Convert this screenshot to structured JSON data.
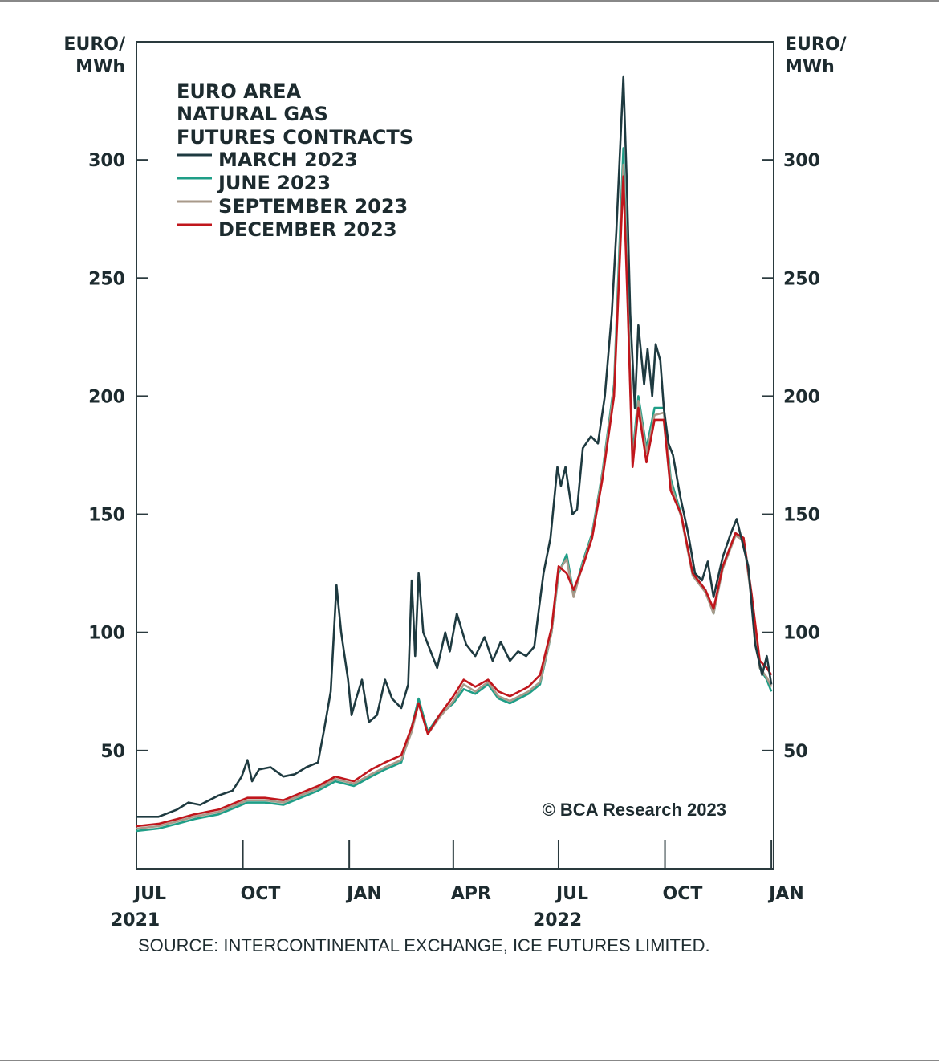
{
  "chart_data": {
    "type": "line",
    "title_lines": [
      "EURO AREA",
      "NATURAL GAS",
      "FUTURES CONTRACTS"
    ],
    "y_unit_left": [
      "EURO/",
      "MWh"
    ],
    "y_unit_right": [
      "EURO/",
      "MWh"
    ],
    "ylim": [
      0,
      350
    ],
    "y_ticks": [
      50,
      100,
      150,
      200,
      250,
      300
    ],
    "y_tick_labels": [
      "50",
      "100",
      "150",
      "200",
      "250",
      "300"
    ],
    "x_range": [
      "2021-07-01",
      "2023-01-03"
    ],
    "x_ticks": [
      "2021-07-01",
      "2021-10-01",
      "2022-01-01",
      "2022-04-01",
      "2022-07-01",
      "2022-10-01",
      "2023-01-01"
    ],
    "x_tick_labels": [
      "JUL",
      "OCT",
      "JAN",
      "APR",
      "JUL",
      "OCT",
      "JAN"
    ],
    "year_labels": [
      {
        "text": "2021",
        "at": "2021-07-01"
      },
      {
        "text": "2022",
        "at": "2022-07-01"
      }
    ],
    "grid": false,
    "legend_position": "top-left",
    "annotation": "© BCA Research 2023",
    "source": "SOURCE: INTERCONTINENTAL EXCHANGE, ICE FUTURES LIMITED.",
    "series": [
      {
        "name": "MARCH 2023",
        "color": "#1e3a40",
        "points": [
          [
            "2021-07-01",
            22
          ],
          [
            "2021-07-20",
            22
          ],
          [
            "2021-08-05",
            25
          ],
          [
            "2021-08-15",
            28
          ],
          [
            "2021-08-25",
            27
          ],
          [
            "2021-09-10",
            31
          ],
          [
            "2021-09-22",
            33
          ],
          [
            "2021-09-30",
            39
          ],
          [
            "2021-10-05",
            46
          ],
          [
            "2021-10-09",
            37
          ],
          [
            "2021-10-15",
            42
          ],
          [
            "2021-10-25",
            43
          ],
          [
            "2021-11-05",
            39
          ],
          [
            "2021-11-15",
            40
          ],
          [
            "2021-11-25",
            43
          ],
          [
            "2021-12-05",
            45
          ],
          [
            "2021-12-10",
            58
          ],
          [
            "2021-12-16",
            75
          ],
          [
            "2021-12-21",
            120
          ],
          [
            "2021-12-25",
            100
          ],
          [
            "2021-12-31",
            80
          ],
          [
            "2022-01-03",
            65
          ],
          [
            "2022-01-07",
            72
          ],
          [
            "2022-01-12",
            80
          ],
          [
            "2022-01-18",
            62
          ],
          [
            "2022-01-25",
            65
          ],
          [
            "2022-02-01",
            80
          ],
          [
            "2022-02-07",
            72
          ],
          [
            "2022-02-15",
            68
          ],
          [
            "2022-02-21",
            78
          ],
          [
            "2022-02-24",
            122
          ],
          [
            "2022-02-27",
            90
          ],
          [
            "2022-03-02",
            125
          ],
          [
            "2022-03-06",
            100
          ],
          [
            "2022-03-10",
            95
          ],
          [
            "2022-03-18",
            85
          ],
          [
            "2022-03-25",
            100
          ],
          [
            "2022-03-29",
            92
          ],
          [
            "2022-04-04",
            108
          ],
          [
            "2022-04-12",
            95
          ],
          [
            "2022-04-20",
            90
          ],
          [
            "2022-04-28",
            98
          ],
          [
            "2022-05-05",
            88
          ],
          [
            "2022-05-12",
            96
          ],
          [
            "2022-05-20",
            88
          ],
          [
            "2022-05-27",
            92
          ],
          [
            "2022-06-03",
            90
          ],
          [
            "2022-06-10",
            94
          ],
          [
            "2022-06-14",
            110
          ],
          [
            "2022-06-18",
            125
          ],
          [
            "2022-06-24",
            140
          ],
          [
            "2022-06-30",
            170
          ],
          [
            "2022-07-03",
            162
          ],
          [
            "2022-07-07",
            170
          ],
          [
            "2022-07-13",
            150
          ],
          [
            "2022-07-17",
            152
          ],
          [
            "2022-07-22",
            178
          ],
          [
            "2022-07-29",
            183
          ],
          [
            "2022-08-04",
            180
          ],
          [
            "2022-08-10",
            200
          ],
          [
            "2022-08-16",
            235
          ],
          [
            "2022-08-20",
            270
          ],
          [
            "2022-08-26",
            335
          ],
          [
            "2022-08-29",
            290
          ],
          [
            "2022-09-01",
            235
          ],
          [
            "2022-09-05",
            195
          ],
          [
            "2022-09-08",
            230
          ],
          [
            "2022-09-13",
            205
          ],
          [
            "2022-09-16",
            220
          ],
          [
            "2022-09-20",
            200
          ],
          [
            "2022-09-23",
            222
          ],
          [
            "2022-09-27",
            215
          ],
          [
            "2022-09-30",
            195
          ],
          [
            "2022-10-04",
            180
          ],
          [
            "2022-10-08",
            175
          ],
          [
            "2022-10-14",
            158
          ],
          [
            "2022-10-21",
            142
          ],
          [
            "2022-10-27",
            125
          ],
          [
            "2022-11-02",
            122
          ],
          [
            "2022-11-07",
            130
          ],
          [
            "2022-11-12",
            115
          ],
          [
            "2022-11-20",
            132
          ],
          [
            "2022-11-27",
            142
          ],
          [
            "2022-12-02",
            148
          ],
          [
            "2022-12-07",
            138
          ],
          [
            "2022-12-12",
            128
          ],
          [
            "2022-12-18",
            95
          ],
          [
            "2022-12-24",
            82
          ],
          [
            "2022-12-28",
            90
          ],
          [
            "2023-01-01",
            78
          ]
        ]
      },
      {
        "name": "JUNE 2023",
        "color": "#1f9e87",
        "points": [
          [
            "2021-07-01",
            16
          ],
          [
            "2021-07-20",
            17
          ],
          [
            "2021-08-05",
            19
          ],
          [
            "2021-08-20",
            21
          ],
          [
            "2021-09-10",
            23
          ],
          [
            "2021-09-25",
            26
          ],
          [
            "2021-10-05",
            28
          ],
          [
            "2021-10-20",
            28
          ],
          [
            "2021-11-05",
            27
          ],
          [
            "2021-11-20",
            30
          ],
          [
            "2021-12-05",
            33
          ],
          [
            "2021-12-20",
            37
          ],
          [
            "2022-01-05",
            35
          ],
          [
            "2022-01-20",
            39
          ],
          [
            "2022-02-01",
            42
          ],
          [
            "2022-02-15",
            45
          ],
          [
            "2022-02-24",
            60
          ],
          [
            "2022-03-02",
            72
          ],
          [
            "2022-03-10",
            58
          ],
          [
            "2022-03-20",
            65
          ],
          [
            "2022-04-01",
            70
          ],
          [
            "2022-04-10",
            76
          ],
          [
            "2022-04-20",
            74
          ],
          [
            "2022-05-01",
            78
          ],
          [
            "2022-05-10",
            72
          ],
          [
            "2022-05-20",
            70
          ],
          [
            "2022-06-05",
            74
          ],
          [
            "2022-06-15",
            78
          ],
          [
            "2022-06-25",
            100
          ],
          [
            "2022-07-01",
            125
          ],
          [
            "2022-07-08",
            133
          ],
          [
            "2022-07-14",
            116
          ],
          [
            "2022-07-22",
            130
          ],
          [
            "2022-07-30",
            142
          ],
          [
            "2022-08-08",
            168
          ],
          [
            "2022-08-18",
            205
          ],
          [
            "2022-08-26",
            305
          ],
          [
            "2022-08-30",
            240
          ],
          [
            "2022-09-03",
            175
          ],
          [
            "2022-09-08",
            200
          ],
          [
            "2022-09-15",
            178
          ],
          [
            "2022-09-22",
            195
          ],
          [
            "2022-09-30",
            195
          ],
          [
            "2022-10-06",
            165
          ],
          [
            "2022-10-15",
            150
          ],
          [
            "2022-10-25",
            125
          ],
          [
            "2022-11-05",
            118
          ],
          [
            "2022-11-12",
            108
          ],
          [
            "2022-11-20",
            128
          ],
          [
            "2022-12-01",
            142
          ],
          [
            "2022-12-08",
            140
          ],
          [
            "2022-12-15",
            115
          ],
          [
            "2022-12-22",
            85
          ],
          [
            "2022-12-28",
            80
          ],
          [
            "2023-01-01",
            75
          ]
        ]
      },
      {
        "name": "SEPTEMBER 2023",
        "color": "#a89a8a",
        "points": [
          [
            "2021-07-01",
            17
          ],
          [
            "2021-07-20",
            18
          ],
          [
            "2021-08-05",
            20
          ],
          [
            "2021-08-20",
            22
          ],
          [
            "2021-09-10",
            24
          ],
          [
            "2021-09-25",
            27
          ],
          [
            "2021-10-05",
            29
          ],
          [
            "2021-10-20",
            29
          ],
          [
            "2021-11-05",
            28
          ],
          [
            "2021-11-20",
            31
          ],
          [
            "2021-12-05",
            34
          ],
          [
            "2021-12-20",
            38
          ],
          [
            "2022-01-05",
            36
          ],
          [
            "2022-01-20",
            40
          ],
          [
            "2022-02-01",
            43
          ],
          [
            "2022-02-15",
            46
          ],
          [
            "2022-02-24",
            58
          ],
          [
            "2022-03-02",
            70
          ],
          [
            "2022-03-10",
            57
          ],
          [
            "2022-03-20",
            64
          ],
          [
            "2022-04-01",
            71
          ],
          [
            "2022-04-10",
            78
          ],
          [
            "2022-04-20",
            75
          ],
          [
            "2022-05-01",
            79
          ],
          [
            "2022-05-10",
            73
          ],
          [
            "2022-05-20",
            71
          ],
          [
            "2022-06-05",
            75
          ],
          [
            "2022-06-15",
            79
          ],
          [
            "2022-06-25",
            100
          ],
          [
            "2022-07-01",
            126
          ],
          [
            "2022-07-08",
            131
          ],
          [
            "2022-07-14",
            115
          ],
          [
            "2022-07-22",
            129
          ],
          [
            "2022-07-30",
            141
          ],
          [
            "2022-08-08",
            167
          ],
          [
            "2022-08-18",
            203
          ],
          [
            "2022-08-26",
            298
          ],
          [
            "2022-08-30",
            238
          ],
          [
            "2022-09-03",
            172
          ],
          [
            "2022-09-08",
            198
          ],
          [
            "2022-09-15",
            176
          ],
          [
            "2022-09-22",
            192
          ],
          [
            "2022-09-30",
            193
          ],
          [
            "2022-10-06",
            163
          ],
          [
            "2022-10-15",
            149
          ],
          [
            "2022-10-25",
            124
          ],
          [
            "2022-11-05",
            117
          ],
          [
            "2022-11-12",
            108
          ],
          [
            "2022-11-20",
            127
          ],
          [
            "2022-12-01",
            141
          ],
          [
            "2022-12-08",
            139
          ],
          [
            "2022-12-15",
            114
          ],
          [
            "2022-12-22",
            85
          ],
          [
            "2022-12-28",
            81
          ],
          [
            "2023-01-01",
            77
          ]
        ]
      },
      {
        "name": "DECEMBER 2023",
        "color": "#c0161c",
        "points": [
          [
            "2021-07-01",
            18
          ],
          [
            "2021-07-20",
            19
          ],
          [
            "2021-08-05",
            21
          ],
          [
            "2021-08-20",
            23
          ],
          [
            "2021-09-10",
            25
          ],
          [
            "2021-09-25",
            28
          ],
          [
            "2021-10-05",
            30
          ],
          [
            "2021-10-20",
            30
          ],
          [
            "2021-11-05",
            29
          ],
          [
            "2021-11-20",
            32
          ],
          [
            "2021-12-05",
            35
          ],
          [
            "2021-12-20",
            39
          ],
          [
            "2022-01-05",
            37
          ],
          [
            "2022-01-20",
            42
          ],
          [
            "2022-02-01",
            45
          ],
          [
            "2022-02-15",
            48
          ],
          [
            "2022-02-24",
            60
          ],
          [
            "2022-03-02",
            70
          ],
          [
            "2022-03-10",
            57
          ],
          [
            "2022-03-20",
            65
          ],
          [
            "2022-04-01",
            73
          ],
          [
            "2022-04-10",
            80
          ],
          [
            "2022-04-20",
            77
          ],
          [
            "2022-05-01",
            80
          ],
          [
            "2022-05-10",
            75
          ],
          [
            "2022-05-20",
            73
          ],
          [
            "2022-06-05",
            77
          ],
          [
            "2022-06-15",
            82
          ],
          [
            "2022-06-25",
            102
          ],
          [
            "2022-07-01",
            128
          ],
          [
            "2022-07-08",
            125
          ],
          [
            "2022-07-14",
            118
          ],
          [
            "2022-07-22",
            128
          ],
          [
            "2022-07-30",
            140
          ],
          [
            "2022-08-08",
            165
          ],
          [
            "2022-08-18",
            200
          ],
          [
            "2022-08-26",
            293
          ],
          [
            "2022-08-30",
            235
          ],
          [
            "2022-09-03",
            170
          ],
          [
            "2022-09-08",
            195
          ],
          [
            "2022-09-15",
            172
          ],
          [
            "2022-09-22",
            190
          ],
          [
            "2022-09-30",
            190
          ],
          [
            "2022-10-06",
            160
          ],
          [
            "2022-10-15",
            150
          ],
          [
            "2022-10-25",
            125
          ],
          [
            "2022-11-05",
            118
          ],
          [
            "2022-11-12",
            110
          ],
          [
            "2022-11-20",
            128
          ],
          [
            "2022-12-01",
            142
          ],
          [
            "2022-12-08",
            140
          ],
          [
            "2022-12-15",
            116
          ],
          [
            "2022-12-22",
            88
          ],
          [
            "2022-12-28",
            85
          ],
          [
            "2023-01-01",
            82
          ]
        ]
      }
    ]
  }
}
